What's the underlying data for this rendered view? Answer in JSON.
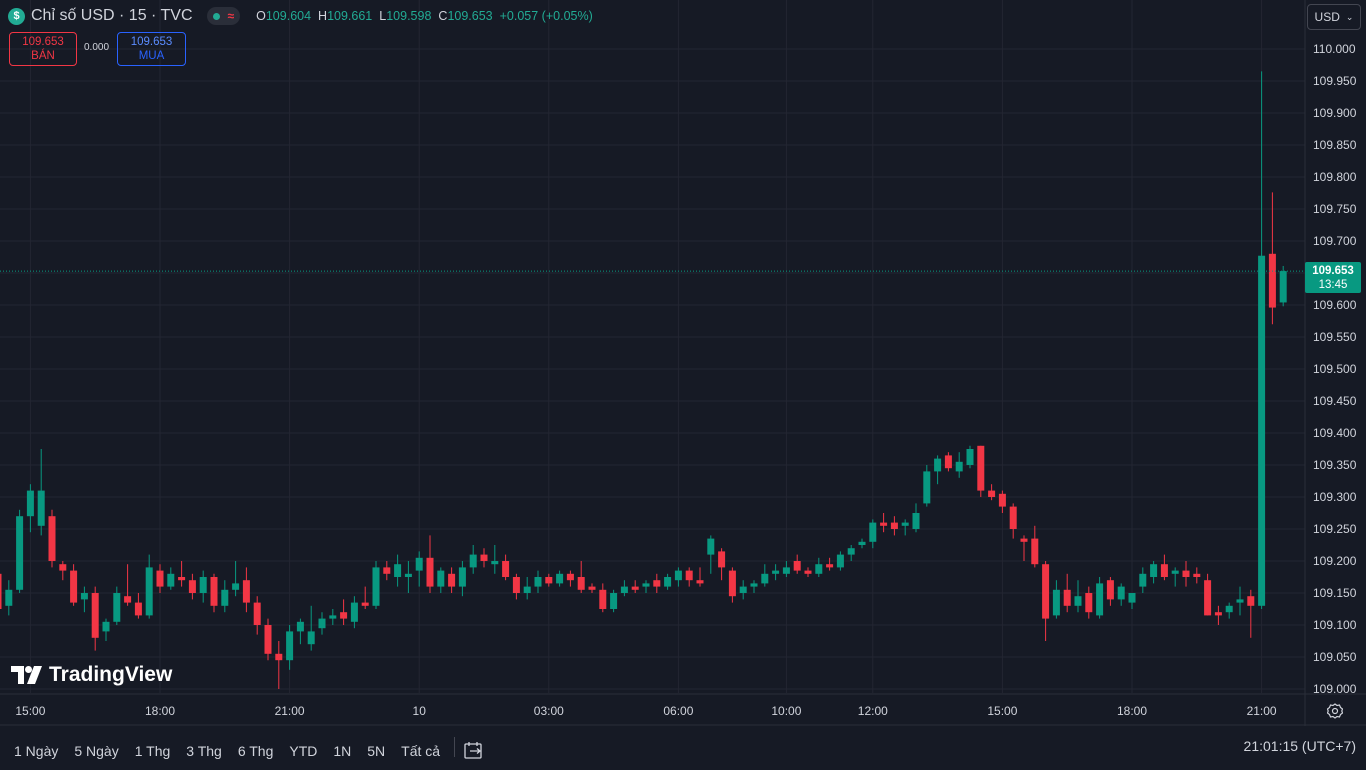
{
  "header": {
    "symbol_icon": "$",
    "title": "Chỉ số USD · 15 · TVC",
    "status_icons": [
      "market-open-dot-icon",
      "data-delayed-wave-icon"
    ],
    "ohlc": {
      "o_label": "O",
      "o": "109.604",
      "h_label": "H",
      "h": "109.661",
      "l_label": "L",
      "l": "109.598",
      "c_label": "C",
      "c": "109.653",
      "change": "+0.057 (+0.05%)"
    }
  },
  "trade": {
    "sell_price": "109.653",
    "sell_label": "BÁN",
    "spread": "0.000",
    "buy_price": "109.653",
    "buy_label": "MUA"
  },
  "currency": {
    "label": "USD"
  },
  "last_price": {
    "price": "109.653",
    "countdown": "13:45"
  },
  "watermark": {
    "text": "TradingView"
  },
  "bottom": {
    "ranges": [
      "1 Ngày",
      "5 Ngày",
      "1 Thg",
      "3 Thg",
      "6 Thg",
      "YTD",
      "1N",
      "5N",
      "Tất cả"
    ],
    "clock": "21:01:15 (UTC+7)"
  },
  "colors": {
    "up": "#089981",
    "down": "#f23645",
    "grid": "#232632",
    "background": "#161a25",
    "text": "#d1d4dc"
  },
  "chart_data": {
    "type": "candlestick",
    "interval": "15",
    "ylim": [
      108.992,
      110.028
    ],
    "y_ticks": [
      "110.000",
      "109.950",
      "109.900",
      "109.850",
      "109.800",
      "109.750",
      "109.700",
      "109.650",
      "109.600",
      "109.550",
      "109.500",
      "109.450",
      "109.400",
      "109.350",
      "109.300",
      "109.250",
      "109.200",
      "109.150",
      "109.100",
      "109.050",
      "109.000"
    ],
    "x_ticks": [
      {
        "label": "15:00",
        "bar": 3
      },
      {
        "label": "18:00",
        "bar": 15
      },
      {
        "label": "21:00",
        "bar": 27
      },
      {
        "label": "10",
        "bar": 39
      },
      {
        "label": "03:00",
        "bar": 51
      },
      {
        "label": "06:00",
        "bar": 63
      },
      {
        "label": "10:00",
        "bar": 73
      },
      {
        "label": "12:00",
        "bar": 81
      },
      {
        "label": "15:00",
        "bar": 93
      },
      {
        "label": "18:00",
        "bar": 105
      },
      {
        "label": "21:00",
        "bar": 117
      }
    ],
    "ohlc_bars": [
      [
        109.18,
        109.185,
        109.11,
        109.125
      ],
      [
        109.13,
        109.17,
        109.115,
        109.155
      ],
      [
        109.155,
        109.28,
        109.15,
        109.27
      ],
      [
        109.27,
        109.32,
        109.245,
        109.31
      ],
      [
        109.255,
        109.375,
        109.24,
        109.31
      ],
      [
        109.27,
        109.28,
        109.19,
        109.2
      ],
      [
        109.195,
        109.2,
        109.17,
        109.185
      ],
      [
        109.185,
        109.195,
        109.13,
        109.135
      ],
      [
        109.14,
        109.16,
        109.12,
        109.15
      ],
      [
        109.15,
        109.16,
        109.06,
        109.08
      ],
      [
        109.09,
        109.11,
        109.075,
        109.105
      ],
      [
        109.105,
        109.16,
        109.1,
        109.15
      ],
      [
        109.145,
        109.195,
        109.13,
        109.135
      ],
      [
        109.135,
        109.15,
        109.11,
        109.115
      ],
      [
        109.115,
        109.21,
        109.11,
        109.19
      ],
      [
        109.185,
        109.195,
        109.15,
        109.16
      ],
      [
        109.16,
        109.19,
        109.155,
        109.18
      ],
      [
        109.175,
        109.2,
        109.16,
        109.17
      ],
      [
        109.17,
        109.18,
        109.14,
        109.15
      ],
      [
        109.15,
        109.185,
        109.135,
        109.175
      ],
      [
        109.175,
        109.18,
        109.12,
        109.13
      ],
      [
        109.13,
        109.17,
        109.12,
        109.155
      ],
      [
        109.155,
        109.2,
        109.145,
        109.165
      ],
      [
        109.17,
        109.19,
        109.12,
        109.135
      ],
      [
        109.135,
        109.145,
        109.085,
        109.1
      ],
      [
        109.1,
        109.11,
        109.045,
        109.055
      ],
      [
        109.055,
        109.075,
        109.0,
        109.045
      ],
      [
        109.045,
        109.1,
        109.03,
        109.09
      ],
      [
        109.09,
        109.11,
        109.07,
        109.105
      ],
      [
        109.07,
        109.13,
        109.06,
        109.09
      ],
      [
        109.095,
        109.12,
        109.085,
        109.11
      ],
      [
        109.11,
        109.125,
        109.1,
        109.115
      ],
      [
        109.12,
        109.14,
        109.1,
        109.11
      ],
      [
        109.105,
        109.145,
        109.095,
        109.135
      ],
      [
        109.135,
        109.16,
        109.125,
        109.13
      ],
      [
        109.13,
        109.2,
        109.125,
        109.19
      ],
      [
        109.19,
        109.2,
        109.17,
        109.18
      ],
      [
        109.175,
        109.21,
        109.16,
        109.195
      ],
      [
        109.175,
        109.2,
        109.15,
        109.18
      ],
      [
        109.185,
        109.215,
        109.16,
        109.205
      ],
      [
        109.205,
        109.24,
        109.15,
        109.16
      ],
      [
        109.16,
        109.19,
        109.15,
        109.185
      ],
      [
        109.18,
        109.19,
        109.15,
        109.16
      ],
      [
        109.16,
        109.2,
        109.145,
        109.19
      ],
      [
        109.19,
        109.225,
        109.18,
        109.21
      ],
      [
        109.21,
        109.22,
        109.19,
        109.2
      ],
      [
        109.195,
        109.225,
        109.18,
        109.2
      ],
      [
        109.2,
        109.21,
        109.17,
        109.175
      ],
      [
        109.175,
        109.18,
        109.14,
        109.15
      ],
      [
        109.15,
        109.175,
        109.14,
        109.16
      ],
      [
        109.16,
        109.185,
        109.15,
        109.175
      ],
      [
        109.175,
        109.18,
        109.16,
        109.165
      ],
      [
        109.165,
        109.185,
        109.16,
        109.18
      ],
      [
        109.18,
        109.185,
        109.16,
        109.17
      ],
      [
        109.175,
        109.2,
        109.15,
        109.155
      ],
      [
        109.16,
        109.165,
        109.15,
        109.155
      ],
      [
        109.155,
        109.165,
        109.12,
        109.125
      ],
      [
        109.125,
        109.155,
        109.12,
        109.15
      ],
      [
        109.15,
        109.17,
        109.145,
        109.16
      ],
      [
        109.16,
        109.17,
        109.15,
        109.155
      ],
      [
        109.16,
        109.17,
        109.15,
        109.165
      ],
      [
        109.17,
        109.18,
        109.15,
        109.16
      ],
      [
        109.16,
        109.18,
        109.155,
        109.175
      ],
      [
        109.17,
        109.19,
        109.16,
        109.185
      ],
      [
        109.185,
        109.19,
        109.16,
        109.17
      ],
      [
        109.17,
        109.19,
        109.16,
        109.165
      ],
      [
        109.21,
        109.24,
        109.18,
        109.235
      ],
      [
        109.215,
        109.22,
        109.17,
        109.19
      ],
      [
        109.185,
        109.19,
        109.135,
        109.145
      ],
      [
        109.15,
        109.17,
        109.14,
        109.16
      ],
      [
        109.16,
        109.17,
        109.15,
        109.165
      ],
      [
        109.165,
        109.195,
        109.16,
        109.18
      ],
      [
        109.18,
        109.195,
        109.17,
        109.185
      ],
      [
        109.18,
        109.2,
        109.175,
        109.19
      ],
      [
        109.2,
        109.21,
        109.18,
        109.185
      ],
      [
        109.185,
        109.19,
        109.175,
        109.18
      ],
      [
        109.18,
        109.205,
        109.175,
        109.195
      ],
      [
        109.195,
        109.205,
        109.185,
        109.19
      ],
      [
        109.19,
        109.215,
        109.185,
        109.21
      ],
      [
        109.21,
        109.225,
        109.2,
        109.22
      ],
      [
        109.225,
        109.235,
        109.22,
        109.23
      ],
      [
        109.23,
        109.265,
        109.22,
        109.26
      ],
      [
        109.26,
        109.275,
        109.245,
        109.255
      ],
      [
        109.26,
        109.27,
        109.24,
        109.25
      ],
      [
        109.255,
        109.265,
        109.24,
        109.26
      ],
      [
        109.25,
        109.29,
        109.245,
        109.275
      ],
      [
        109.29,
        109.35,
        109.285,
        109.34
      ],
      [
        109.34,
        109.365,
        109.32,
        109.36
      ],
      [
        109.365,
        109.37,
        109.34,
        109.345
      ],
      [
        109.34,
        109.37,
        109.33,
        109.355
      ],
      [
        109.35,
        109.38,
        109.345,
        109.375
      ],
      [
        109.38,
        109.38,
        109.3,
        109.31
      ],
      [
        109.31,
        109.32,
        109.295,
        109.3
      ],
      [
        109.305,
        109.31,
        109.275,
        109.285
      ],
      [
        109.285,
        109.29,
        109.235,
        109.25
      ],
      [
        109.235,
        109.24,
        109.2,
        109.23
      ],
      [
        109.235,
        109.255,
        109.19,
        109.195
      ],
      [
        109.195,
        109.2,
        109.075,
        109.11
      ],
      [
        109.115,
        109.17,
        109.11,
        109.155
      ],
      [
        109.155,
        109.18,
        109.12,
        109.13
      ],
      [
        109.13,
        109.17,
        109.12,
        109.145
      ],
      [
        109.15,
        109.16,
        109.11,
        109.12
      ],
      [
        109.115,
        109.175,
        109.11,
        109.165
      ],
      [
        109.17,
        109.175,
        109.13,
        109.14
      ],
      [
        109.14,
        109.165,
        109.13,
        109.16
      ],
      [
        109.135,
        109.15,
        109.125,
        109.15
      ],
      [
        109.16,
        109.19,
        109.15,
        109.18
      ],
      [
        109.175,
        109.2,
        109.165,
        109.195
      ],
      [
        109.195,
        109.21,
        109.17,
        109.175
      ],
      [
        109.18,
        109.19,
        109.16,
        109.185
      ],
      [
        109.185,
        109.2,
        109.16,
        109.175
      ],
      [
        109.18,
        109.19,
        109.165,
        109.175
      ],
      [
        109.17,
        109.18,
        109.115,
        109.115
      ],
      [
        109.12,
        109.13,
        109.1,
        109.115
      ],
      [
        109.12,
        109.135,
        109.11,
        109.13
      ],
      [
        109.135,
        109.16,
        109.115,
        109.14
      ],
      [
        109.145,
        109.155,
        109.08,
        109.13
      ],
      [
        109.13,
        109.965,
        109.125,
        109.677
      ],
      [
        109.68,
        109.776,
        109.57,
        109.596
      ],
      [
        109.604,
        109.661,
        109.598,
        109.653
      ]
    ]
  }
}
